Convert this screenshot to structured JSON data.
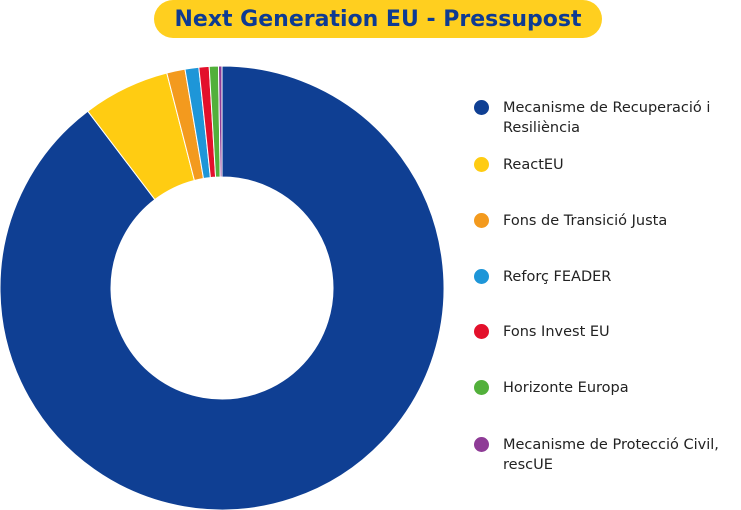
{
  "title": "Next Generation EU - Pressupost",
  "colors": {
    "title_bg": "#FFCF1F",
    "title_text": "#0E3B92"
  },
  "chart_data": {
    "type": "pie",
    "donut": true,
    "title": "Next Generation EU - Pressupost",
    "legend_position": "right",
    "series": [
      {
        "name": "Mecanisme de Recuperació i Resiliència",
        "value": 672.5,
        "color": "#0F3F93"
      },
      {
        "name": "ReactEU",
        "value": 47.5,
        "color": "#FFCC12"
      },
      {
        "name": "Fons de Transició Justa",
        "value": 10.0,
        "color": "#F39A1E"
      },
      {
        "name": "Reforç FEADER",
        "value": 7.5,
        "color": "#1E96D8"
      },
      {
        "name": "Fons Invest EU",
        "value": 5.6,
        "color": "#E3102B"
      },
      {
        "name": "Horizonte Europa",
        "value": 5.0,
        "color": "#52B03B"
      },
      {
        "name": "Mecanisme de Protecció Civil, rescUE",
        "value": 1.9,
        "color": "#8E3B96"
      }
    ]
  }
}
